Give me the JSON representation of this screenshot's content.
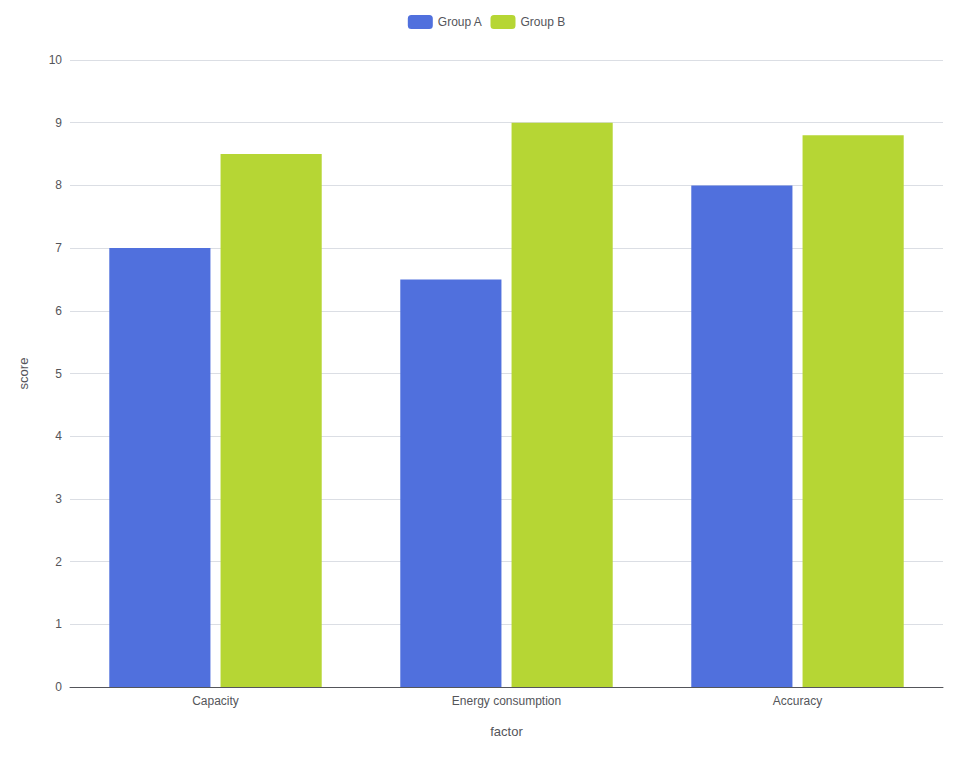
{
  "chart_data": {
    "type": "bar",
    "categories": [
      "Capacity",
      "Energy consumption",
      "Accuracy"
    ],
    "series": [
      {
        "name": "Group A",
        "values": [
          7.0,
          6.5,
          8.0
        ]
      },
      {
        "name": "Group B",
        "values": [
          8.5,
          9.0,
          8.8
        ]
      }
    ],
    "xlabel": "factor",
    "ylabel": "score",
    "ylim": [
      0,
      10
    ],
    "yticks": [
      0,
      1,
      2,
      3,
      4,
      5,
      6,
      7,
      8,
      9,
      10
    ],
    "grid": true,
    "legend": "top"
  }
}
